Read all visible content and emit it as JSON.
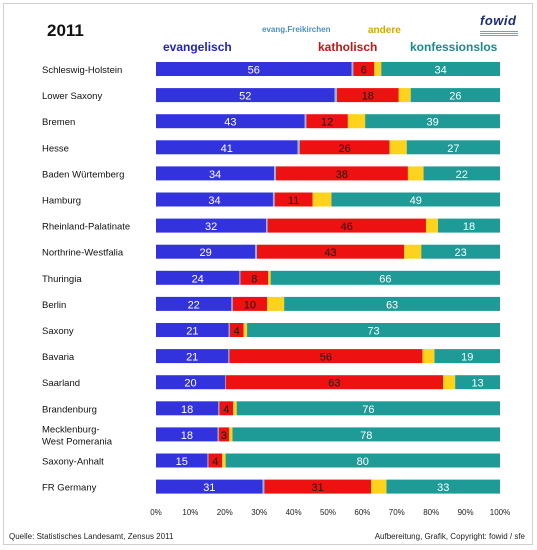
{
  "header": {
    "year": "2011",
    "legend": {
      "evangelisch": "evangelisch",
      "freikirchen": "evang.Freikirchen",
      "katholisch": "katholisch",
      "andere": "andere",
      "konfessionslos": "konfessionslos"
    }
  },
  "logo": {
    "text": "fowid"
  },
  "footer": {
    "source": "Quelle: Statistisches Landesamt, Zensus 2011",
    "credit": "Aufbereitung, Grafik, Copyright: fowid / sfe"
  },
  "colors": {
    "evangelisch": "#3333dd",
    "freikirchen": "#8fb8e8",
    "katholisch": "#ee1111",
    "andere": "#ffd21e",
    "konfessionslos": "#1e9b96"
  },
  "chart_data": {
    "type": "bar",
    "orientation": "horizontal",
    "stacked": true,
    "xlim": [
      0,
      100
    ],
    "x_ticks": [
      "0%",
      "10%",
      "20%",
      "30%",
      "40%",
      "50%",
      "60%",
      "70%",
      "80%",
      "90%",
      "100%"
    ],
    "categories": [
      "Schleswig-Holstein",
      "Lower Saxony",
      "Bremen",
      "Hesse",
      "Baden Würtemberg",
      "Hamburg",
      "Rheinland-Palatinate",
      "Northrine-Westfalia",
      "Thuringia",
      "Berlin",
      "Saxony",
      "Bavaria",
      "Saarland",
      "Brandenburg",
      "Mecklenburg-\nWest Pomerania",
      "Saxony-Anhalt",
      "FR Germany"
    ],
    "series": [
      {
        "name": "evangelisch",
        "values": [
          56,
          52,
          43,
          41,
          34,
          34,
          32,
          29,
          24,
          22,
          21,
          21,
          20,
          18,
          18,
          15,
          31
        ]
      },
      {
        "name": "evang.Freikirchen",
        "values": [
          0.5,
          0.7,
          0.5,
          0.6,
          0.5,
          0.5,
          0.4,
          0.5,
          0.3,
          0.4,
          0.3,
          0.3,
          0.2,
          0.3,
          0.3,
          0.3,
          0.5
        ]
      },
      {
        "name": "katholisch",
        "values": [
          6,
          18,
          12,
          26,
          38,
          11,
          46,
          43,
          8,
          10,
          4,
          56,
          63,
          4,
          3,
          4,
          31
        ]
      },
      {
        "name": "andere",
        "values": [
          2,
          3.5,
          5,
          5,
          4.5,
          5.5,
          3.5,
          5,
          0.7,
          5,
          1,
          3.5,
          3.5,
          1,
          1,
          1,
          4.5
        ]
      },
      {
        "name": "konfessionslos",
        "values": [
          34,
          26,
          39,
          27,
          22,
          49,
          18,
          23,
          66,
          63,
          73,
          19,
          13,
          76,
          78,
          80,
          33
        ]
      }
    ],
    "data_labels": [
      {
        "series": "evangelisch",
        "labels": [
          "56",
          "52",
          "43",
          "41",
          "34",
          "34",
          "32",
          "29",
          "24",
          "22",
          "21",
          "21",
          "20",
          "18",
          "18",
          "15",
          "31"
        ]
      },
      {
        "series": "katholisch",
        "labels": [
          "6",
          "18",
          "12",
          "26",
          "38",
          "11",
          "46",
          "43",
          "8",
          "10",
          "4",
          "56",
          "63",
          "4",
          "3",
          "4",
          "31"
        ]
      },
      {
        "series": "konfessionslos",
        "labels": [
          "34",
          "26",
          "39",
          "27",
          "22",
          "49",
          "18",
          "23",
          "66",
          "63",
          "73",
          "19",
          "13",
          "76",
          "78",
          "80",
          "33"
        ]
      }
    ],
    "grid": false,
    "legend": "top"
  }
}
